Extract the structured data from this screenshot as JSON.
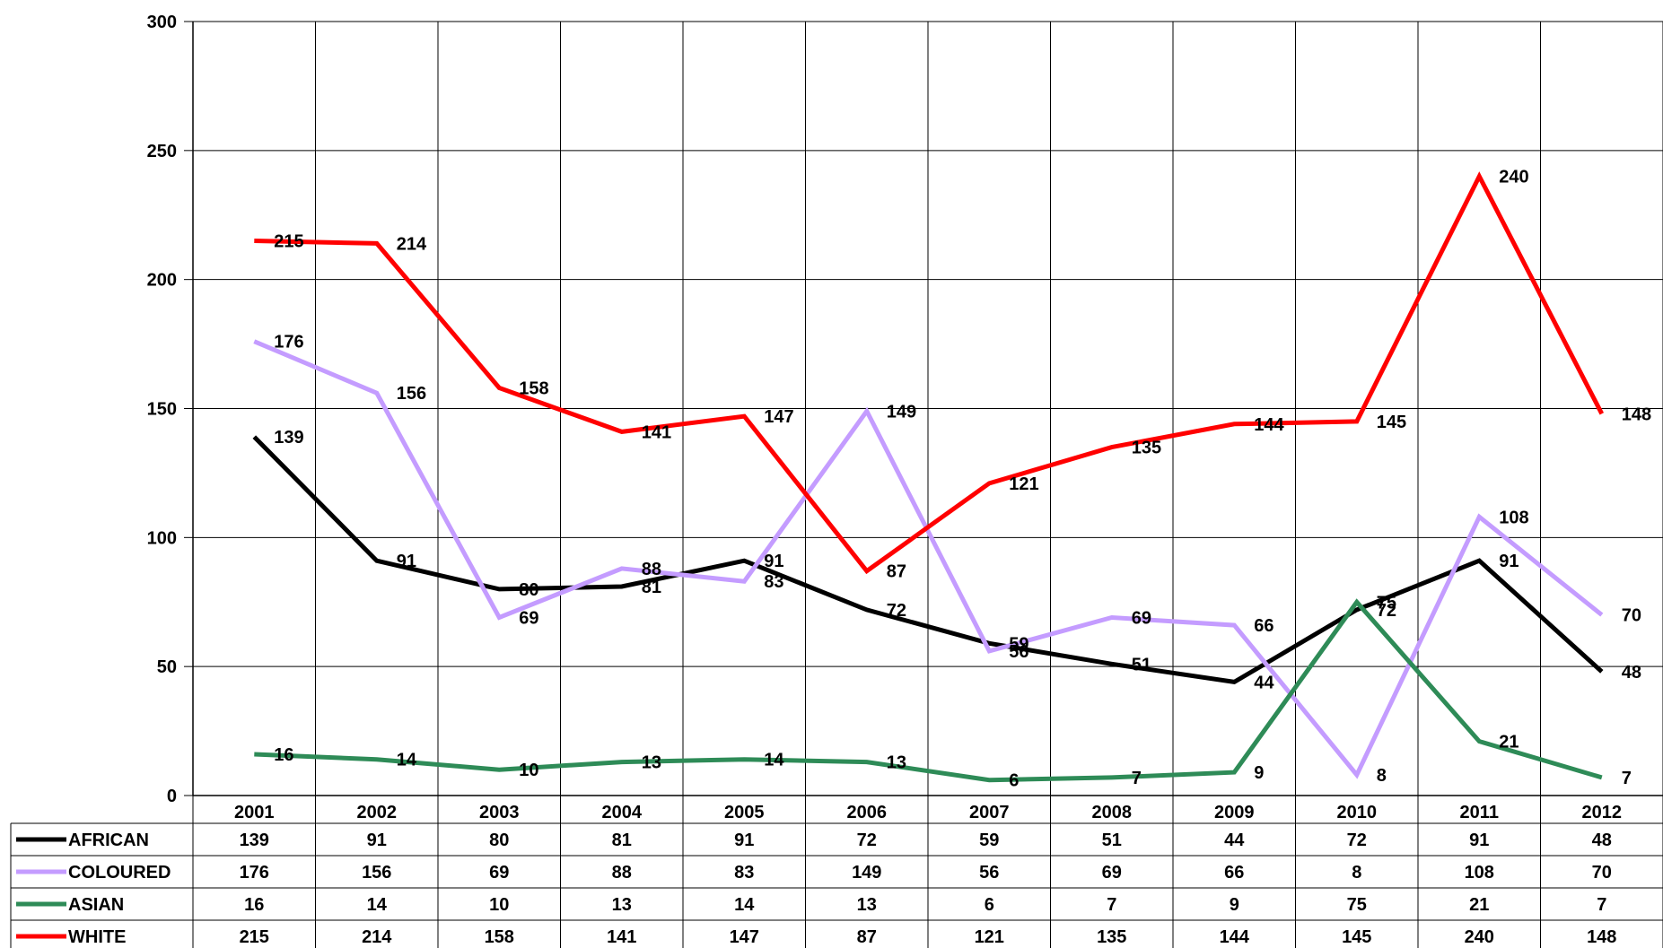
{
  "chart_data": {
    "type": "line",
    "title": "",
    "xlabel": "",
    "ylabel": "",
    "ylim": [
      0,
      300
    ],
    "yticks": [
      0,
      50,
      100,
      150,
      200,
      250,
      300
    ],
    "grid": true,
    "legend": "data table below chart",
    "categories": [
      "2001",
      "2002",
      "2003",
      "2004",
      "2005",
      "2006",
      "2007",
      "2008",
      "2009",
      "2010",
      "2011",
      "2012"
    ],
    "series": [
      {
        "name": "AFRICAN",
        "color": "#000000",
        "values": [
          139,
          91,
          80,
          81,
          91,
          72,
          59,
          51,
          44,
          72,
          91,
          48
        ]
      },
      {
        "name": "COLOURED",
        "color": "#c49cff",
        "values": [
          176,
          156,
          69,
          88,
          83,
          149,
          56,
          69,
          66,
          8,
          108,
          70
        ]
      },
      {
        "name": "ASIAN",
        "color": "#2e8b57",
        "values": [
          16,
          14,
          10,
          13,
          14,
          13,
          6,
          7,
          9,
          75,
          21,
          7
        ]
      },
      {
        "name": "WHITE",
        "color": "#ff0000",
        "values": [
          215,
          214,
          158,
          141,
          147,
          87,
          121,
          135,
          144,
          145,
          240,
          148
        ]
      }
    ]
  }
}
